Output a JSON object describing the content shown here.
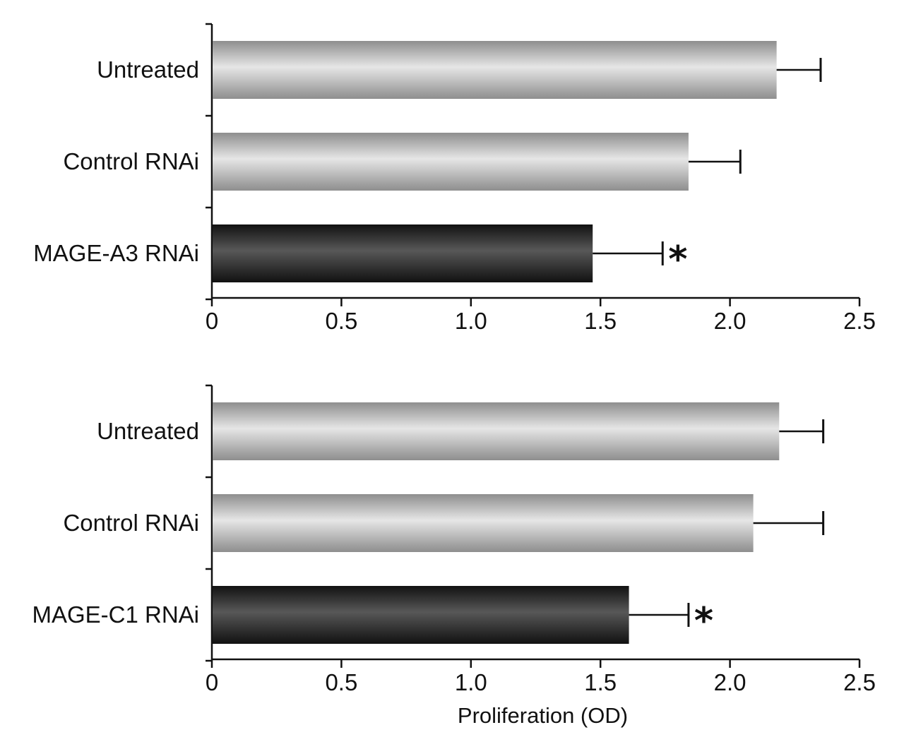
{
  "chart_data": [
    {
      "type": "bar",
      "orientation": "horizontal",
      "categories": [
        "Untreated",
        "Control RNAi",
        "MAGE-A3 RNAi"
      ],
      "values": [
        2.18,
        1.84,
        1.47
      ],
      "errors": [
        0.17,
        0.2,
        0.27
      ],
      "significance": [
        "",
        "",
        "*"
      ],
      "xlim": [
        0,
        2.5
      ],
      "xticks": [
        "0",
        "0.5",
        "1.0",
        "1.5",
        "2.0",
        "2.5"
      ],
      "xlabel": "",
      "grid": false,
      "colors": [
        "#c8c8c8",
        "#c8c8c8",
        "#2a2a2a"
      ]
    },
    {
      "type": "bar",
      "orientation": "horizontal",
      "categories": [
        "Untreated",
        "Control RNAi",
        "MAGE-C1 RNAi"
      ],
      "values": [
        2.19,
        2.09,
        1.61
      ],
      "errors": [
        0.17,
        0.27,
        0.23
      ],
      "significance": [
        "",
        "",
        "*"
      ],
      "xlim": [
        0,
        2.5
      ],
      "xticks": [
        "0",
        "0.5",
        "1.0",
        "1.5",
        "2.0",
        "2.5"
      ],
      "xlabel": "Proliferation (OD)",
      "grid": false,
      "colors": [
        "#c8c8c8",
        "#c8c8c8",
        "#2a2a2a"
      ]
    }
  ]
}
